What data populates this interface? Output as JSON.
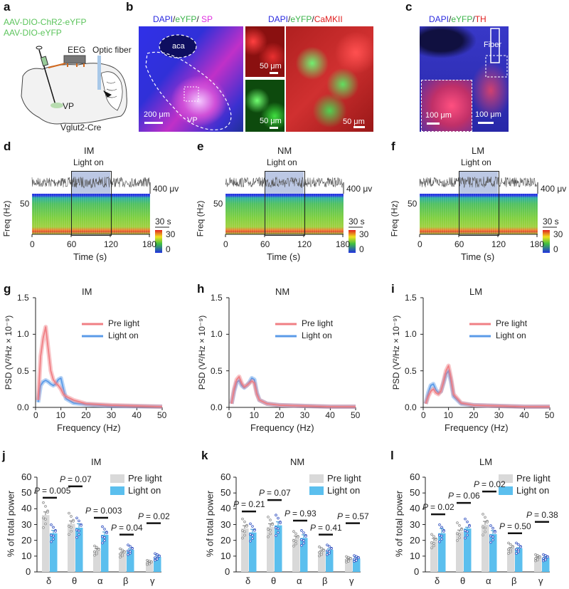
{
  "figure": {
    "a": {
      "label": "a",
      "virus": [
        "AAV-DIO-ChR2-eYFP",
        "AAV-DIO-eYFP"
      ],
      "eeg": "EEG",
      "fiber": "Optic fiber",
      "vp": "VP",
      "mouse": "Vglut2-Cre"
    },
    "b": {
      "label": "b",
      "title1": [
        "DAPI",
        "/",
        "eYFP",
        "/ ",
        "SP"
      ],
      "aca": "aca",
      "vp": "VP",
      "scale1": "200 μm",
      "title2": [
        "DAPI",
        "/",
        "eYFP",
        "/",
        "CaMKII"
      ],
      "scale_small": "50 μm"
    },
    "c": {
      "label": "c",
      "title": [
        "DAPI",
        "/",
        "eYFP",
        "/",
        "TH"
      ],
      "fiber": "Fiber",
      "scale_inset": "100 μm",
      "scale_main": "100 μm"
    },
    "colors": {
      "dapi": "#2a2ae0",
      "eyfp": "#3cb44b",
      "sp": "#e030e0",
      "red": "#e02020",
      "virus": "#5cc45c"
    }
  },
  "eeg_panels": [
    {
      "label": "d",
      "title": "IM",
      "light": "Light on",
      "volt": "400 μv",
      "time_scale": "30 s",
      "ylabel": "Freq (Hz)",
      "ytick": "50",
      "cbar": [
        "30",
        "0"
      ],
      "xticks": [
        "0",
        "60",
        "120",
        "180"
      ],
      "xlabel": "Time (s)"
    },
    {
      "label": "e",
      "title": "NM",
      "light": "Light on",
      "volt": "400 μv",
      "time_scale": "30 s",
      "ylabel": "Freq (Hz)",
      "ytick": "50",
      "cbar": [
        "30",
        "0"
      ],
      "xticks": [
        "0",
        "60",
        "120",
        "180"
      ],
      "xlabel": "Time (s)"
    },
    {
      "label": "f",
      "title": "LM",
      "light": "Light on",
      "volt": "400 μv",
      "time_scale": "30 s",
      "ylabel": "Freq (Hz)",
      "ytick": "50",
      "cbar": [
        "30",
        "0"
      ],
      "xticks": [
        "0",
        "60",
        "120",
        "180"
      ],
      "xlabel": "Time (s)"
    }
  ],
  "chart_data": [
    {
      "type": "line",
      "panel": "g",
      "title": "IM",
      "xlabel": "Frequency (Hz)",
      "ylabel": "PSD (V²/Hz × 10⁻⁹)",
      "xlim": [
        0,
        50
      ],
      "ylim": [
        0,
        1.5
      ],
      "xticks": [
        "0",
        "10",
        "20",
        "30",
        "40",
        "50"
      ],
      "yticks": [
        "0.0",
        "0.5",
        "1.0",
        "1.5"
      ],
      "legend": "top-right",
      "series": [
        {
          "name": "Pre light",
          "color": "#f07f84",
          "points": [
            [
              1,
              0.1
            ],
            [
              2,
              0.7
            ],
            [
              3,
              0.95
            ],
            [
              4,
              1.1
            ],
            [
              5,
              0.8
            ],
            [
              6,
              0.5
            ],
            [
              7,
              0.38
            ],
            [
              8,
              0.33
            ],
            [
              9,
              0.3
            ],
            [
              10,
              0.25
            ],
            [
              11,
              0.18
            ],
            [
              12,
              0.15
            ],
            [
              15,
              0.1
            ],
            [
              20,
              0.05
            ],
            [
              30,
              0.03
            ],
            [
              40,
              0.02
            ],
            [
              50,
              0.01
            ]
          ]
        },
        {
          "name": "Light on",
          "color": "#5b9be8",
          "points": [
            [
              1,
              0.07
            ],
            [
              2,
              0.3
            ],
            [
              3,
              0.35
            ],
            [
              4,
              0.37
            ],
            [
              5,
              0.35
            ],
            [
              6,
              0.32
            ],
            [
              7,
              0.3
            ],
            [
              8,
              0.32
            ],
            [
              9,
              0.38
            ],
            [
              10,
              0.4
            ],
            [
              11,
              0.25
            ],
            [
              12,
              0.12
            ],
            [
              15,
              0.06
            ],
            [
              20,
              0.04
            ],
            [
              30,
              0.02
            ],
            [
              40,
              0.015
            ],
            [
              50,
              0.01
            ]
          ]
        }
      ]
    },
    {
      "type": "line",
      "panel": "h",
      "title": "NM",
      "xlabel": "Frequency (Hz)",
      "ylabel": "PSD (V²/Hz × 10⁻⁹)",
      "xlim": [
        0,
        50
      ],
      "ylim": [
        0,
        1.5
      ],
      "xticks": [
        "0",
        "10",
        "20",
        "30",
        "40",
        "50"
      ],
      "yticks": [
        "0.0",
        "0.5",
        "1.0",
        "1.5"
      ],
      "legend": "top-right",
      "series": [
        {
          "name": "Pre light",
          "color": "#f07f84",
          "points": [
            [
              1,
              0.05
            ],
            [
              2,
              0.25
            ],
            [
              3,
              0.38
            ],
            [
              4,
              0.42
            ],
            [
              5,
              0.33
            ],
            [
              6,
              0.28
            ],
            [
              7,
              0.3
            ],
            [
              8,
              0.33
            ],
            [
              9,
              0.36
            ],
            [
              10,
              0.33
            ],
            [
              11,
              0.18
            ],
            [
              12,
              0.1
            ],
            [
              15,
              0.05
            ],
            [
              20,
              0.03
            ],
            [
              30,
              0.02
            ],
            [
              40,
              0.01
            ],
            [
              50,
              0.01
            ]
          ]
        },
        {
          "name": "Light on",
          "color": "#5b9be8",
          "points": [
            [
              1,
              0.05
            ],
            [
              2,
              0.22
            ],
            [
              3,
              0.34
            ],
            [
              4,
              0.37
            ],
            [
              5,
              0.3
            ],
            [
              6,
              0.27
            ],
            [
              7,
              0.3
            ],
            [
              8,
              0.34
            ],
            [
              9,
              0.4
            ],
            [
              10,
              0.38
            ],
            [
              11,
              0.2
            ],
            [
              12,
              0.1
            ],
            [
              15,
              0.05
            ],
            [
              20,
              0.03
            ],
            [
              30,
              0.02
            ],
            [
              40,
              0.01
            ],
            [
              50,
              0.01
            ]
          ]
        }
      ]
    },
    {
      "type": "line",
      "panel": "i",
      "title": "LM",
      "xlabel": "Frequency (Hz)",
      "ylabel": "PSD (V²/Hz × 10⁻⁹)",
      "xlim": [
        0,
        50
      ],
      "ylim": [
        0,
        1.5
      ],
      "xticks": [
        "0",
        "10",
        "20",
        "30",
        "40",
        "50"
      ],
      "yticks": [
        "0.0",
        "0.5",
        "1.0",
        "1.5"
      ],
      "legend": "top-right",
      "series": [
        {
          "name": "Pre light",
          "color": "#f07f84",
          "points": [
            [
              1,
              0.05
            ],
            [
              2,
              0.15
            ],
            [
              3,
              0.22
            ],
            [
              4,
              0.25
            ],
            [
              5,
              0.2
            ],
            [
              6,
              0.18
            ],
            [
              7,
              0.22
            ],
            [
              8,
              0.35
            ],
            [
              9,
              0.5
            ],
            [
              10,
              0.57
            ],
            [
              11,
              0.4
            ],
            [
              12,
              0.18
            ],
            [
              15,
              0.06
            ],
            [
              20,
              0.03
            ],
            [
              30,
              0.02
            ],
            [
              40,
              0.01
            ],
            [
              50,
              0.01
            ]
          ]
        },
        {
          "name": "Light on",
          "color": "#5b9be8",
          "points": [
            [
              1,
              0.05
            ],
            [
              2,
              0.2
            ],
            [
              3,
              0.3
            ],
            [
              4,
              0.32
            ],
            [
              5,
              0.24
            ],
            [
              6,
              0.2
            ],
            [
              7,
              0.22
            ],
            [
              8,
              0.33
            ],
            [
              9,
              0.45
            ],
            [
              10,
              0.5
            ],
            [
              11,
              0.35
            ],
            [
              12,
              0.15
            ],
            [
              15,
              0.05
            ],
            [
              20,
              0.03
            ],
            [
              30,
              0.02
            ],
            [
              40,
              0.01
            ],
            [
              50,
              0.01
            ]
          ]
        }
      ]
    },
    {
      "type": "bar",
      "panel": "j",
      "title": "IM",
      "ylabel": "% of total power",
      "categories": [
        "δ",
        "θ",
        "α",
        "β",
        "γ"
      ],
      "ylim": [
        0,
        60
      ],
      "yticks": [
        "0",
        "10",
        "20",
        "30",
        "40",
        "50",
        "60"
      ],
      "legend": "top-right",
      "p_prefix": "P",
      "series": [
        {
          "name": "Pre light",
          "color": "#d9d9d9",
          "dot": "#888888",
          "values": [
            36,
            30.5,
            13.5,
            12,
            6
          ],
          "sem": [
            2,
            1.8,
            1.2,
            0.6,
            0.5
          ]
        },
        {
          "name": "Light on",
          "color": "#5bbfee",
          "dot": "#3050c0",
          "values": [
            24.5,
            28,
            23.5,
            14,
            9.5
          ],
          "sem": [
            1.8,
            2.5,
            1.8,
            0.6,
            0.9
          ]
        }
      ],
      "p_values": [
        "= 0.005",
        "= 0.07",
        "= 0.003",
        "= 0.04",
        "= 0.02"
      ]
    },
    {
      "type": "bar",
      "panel": "k",
      "title": "NM",
      "ylabel": "% of total power",
      "categories": [
        "δ",
        "θ",
        "α",
        "β",
        "γ"
      ],
      "ylim": [
        0,
        60
      ],
      "yticks": [
        "0",
        "10",
        "20",
        "30",
        "40",
        "50",
        "60"
      ],
      "legend": "top-right",
      "p_prefix": "P",
      "series": [
        {
          "name": "Pre light",
          "color": "#d9d9d9",
          "dot": "#888888",
          "values": [
            27.5,
            28.5,
            21,
            13,
            8
          ],
          "sem": [
            1.8,
            2,
            1.7,
            0.5,
            0.5
          ]
        },
        {
          "name": "Light on",
          "color": "#5bbfee",
          "dot": "#3050c0",
          "values": [
            25,
            29.5,
            21.5,
            14,
            8.5
          ],
          "sem": [
            2,
            2.2,
            2,
            0.6,
            0.7
          ]
        }
      ],
      "p_values": [
        "= 0.21",
        "= 0.07",
        "= 0.93",
        "= 0.41",
        "= 0.57"
      ]
    },
    {
      "type": "bar",
      "panel": "l",
      "title": "LM",
      "ylabel": "% of total power",
      "categories": [
        "δ",
        "θ",
        "α",
        "β",
        "γ"
      ],
      "ylim": [
        0,
        60
      ],
      "yticks": [
        "0",
        "10",
        "20",
        "30",
        "40",
        "50",
        "60"
      ],
      "legend": "top-right",
      "p_prefix": "P",
      "series": [
        {
          "name": "Pre light",
          "color": "#d9d9d9",
          "dot": "#888888",
          "values": [
            19.5,
            25.5,
            30,
            15,
            9
          ],
          "sem": [
            1.7,
            1,
            2,
            0.5,
            0.5
          ]
        },
        {
          "name": "Light on",
          "color": "#5bbfee",
          "dot": "#3050c0",
          "values": [
            24.5,
            27.5,
            24,
            15,
            9
          ],
          "sem": [
            3,
            0.8,
            2.2,
            0.4,
            0.5
          ]
        }
      ],
      "p_values": [
        "= 0.02",
        "= 0.06",
        "= 0.02",
        "= 0.50",
        "= 0.38"
      ]
    }
  ]
}
